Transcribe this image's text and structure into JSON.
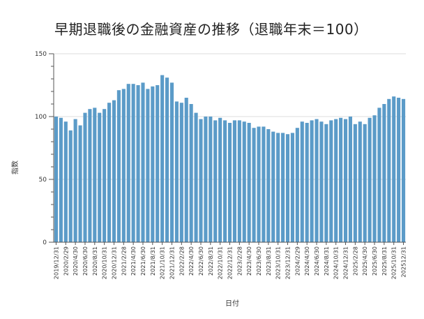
{
  "title": "早期退職後の金融資産の推移（退職年末＝100）",
  "chart_data": {
    "type": "bar",
    "title": "早期退職後の金融資産の推移（退職年末＝100）",
    "xlabel": "日付",
    "ylabel": "指数",
    "ylim": [
      0,
      150
    ],
    "yticks": [
      0,
      50,
      100,
      150
    ],
    "grid": true,
    "color": "#5b9bc8",
    "x_tick_labels": [
      "2019/12/31",
      "2020/2/29",
      "2020/4/30",
      "2020/6/30",
      "2020/8/31",
      "2020/10/31",
      "2020/12/31",
      "2021/2/28",
      "2021/4/30",
      "2021/6/30",
      "2021/8/31",
      "2021/10/31",
      "2021/12/31",
      "2022/2/28",
      "2022/4/30",
      "2022/6/30",
      "2022/8/31",
      "2022/10/31",
      "2022/12/31",
      "2023/2/28",
      "2023/4/30",
      "2023/6/30",
      "2023/8/31",
      "2023/10/31",
      "2023/12/31",
      "2024/2/29",
      "2024/4/30",
      "2024/6/30",
      "2024/8/31",
      "2024/10/31",
      "2024/12/31",
      "2025/2/28",
      "2025/4/30",
      "2025/6/30",
      "2025/8/31",
      "2025/10/31",
      "202512/31"
    ],
    "values": [
      100,
      99,
      96,
      89,
      98,
      93,
      103,
      106,
      107,
      103,
      106,
      111,
      113,
      121,
      122,
      126,
      126,
      125,
      127,
      122,
      124,
      125,
      133,
      131,
      127,
      112,
      111,
      115,
      110,
      103,
      98,
      100,
      100,
      97,
      99,
      97,
      95,
      97,
      97,
      96,
      95,
      91,
      92,
      92,
      90,
      88,
      87,
      87,
      86,
      87,
      91,
      96,
      95,
      97,
      98,
      96,
      94,
      97,
      98,
      99,
      98,
      100,
      94,
      96,
      94,
      99,
      101,
      107,
      110,
      114,
      116,
      115,
      114
    ]
  }
}
